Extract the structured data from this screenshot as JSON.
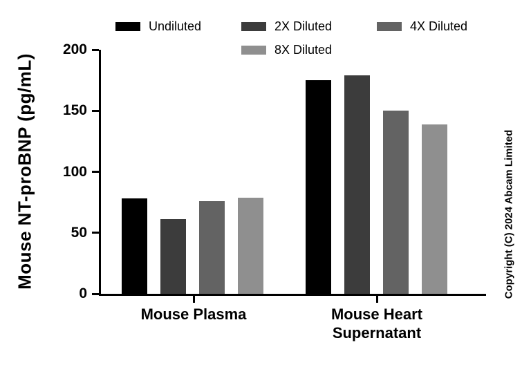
{
  "chart_data": {
    "type": "bar",
    "title": "",
    "ylabel": "Mouse NT-proBNP (pg/mL)",
    "xlabel": "",
    "ylim": [
      0,
      200
    ],
    "yticks": [
      0,
      50,
      100,
      150,
      200
    ],
    "grid": false,
    "legend_position": "top",
    "categories": [
      "Mouse Plasma",
      "Mouse Heart\nSupernatant"
    ],
    "series": [
      {
        "name": "Undiluted",
        "color": "#000000",
        "values": [
          78,
          175
        ]
      },
      {
        "name": "2X Diluted",
        "color": "#3c3c3c",
        "values": [
          61,
          179
        ]
      },
      {
        "name": "4X Diluted",
        "color": "#636363",
        "values": [
          76,
          150
        ]
      },
      {
        "name": "8X Diluted",
        "color": "#8f8f8f",
        "values": [
          79,
          139
        ]
      }
    ]
  },
  "copyright": "Copyright (C) 2024 Abcam Limited"
}
